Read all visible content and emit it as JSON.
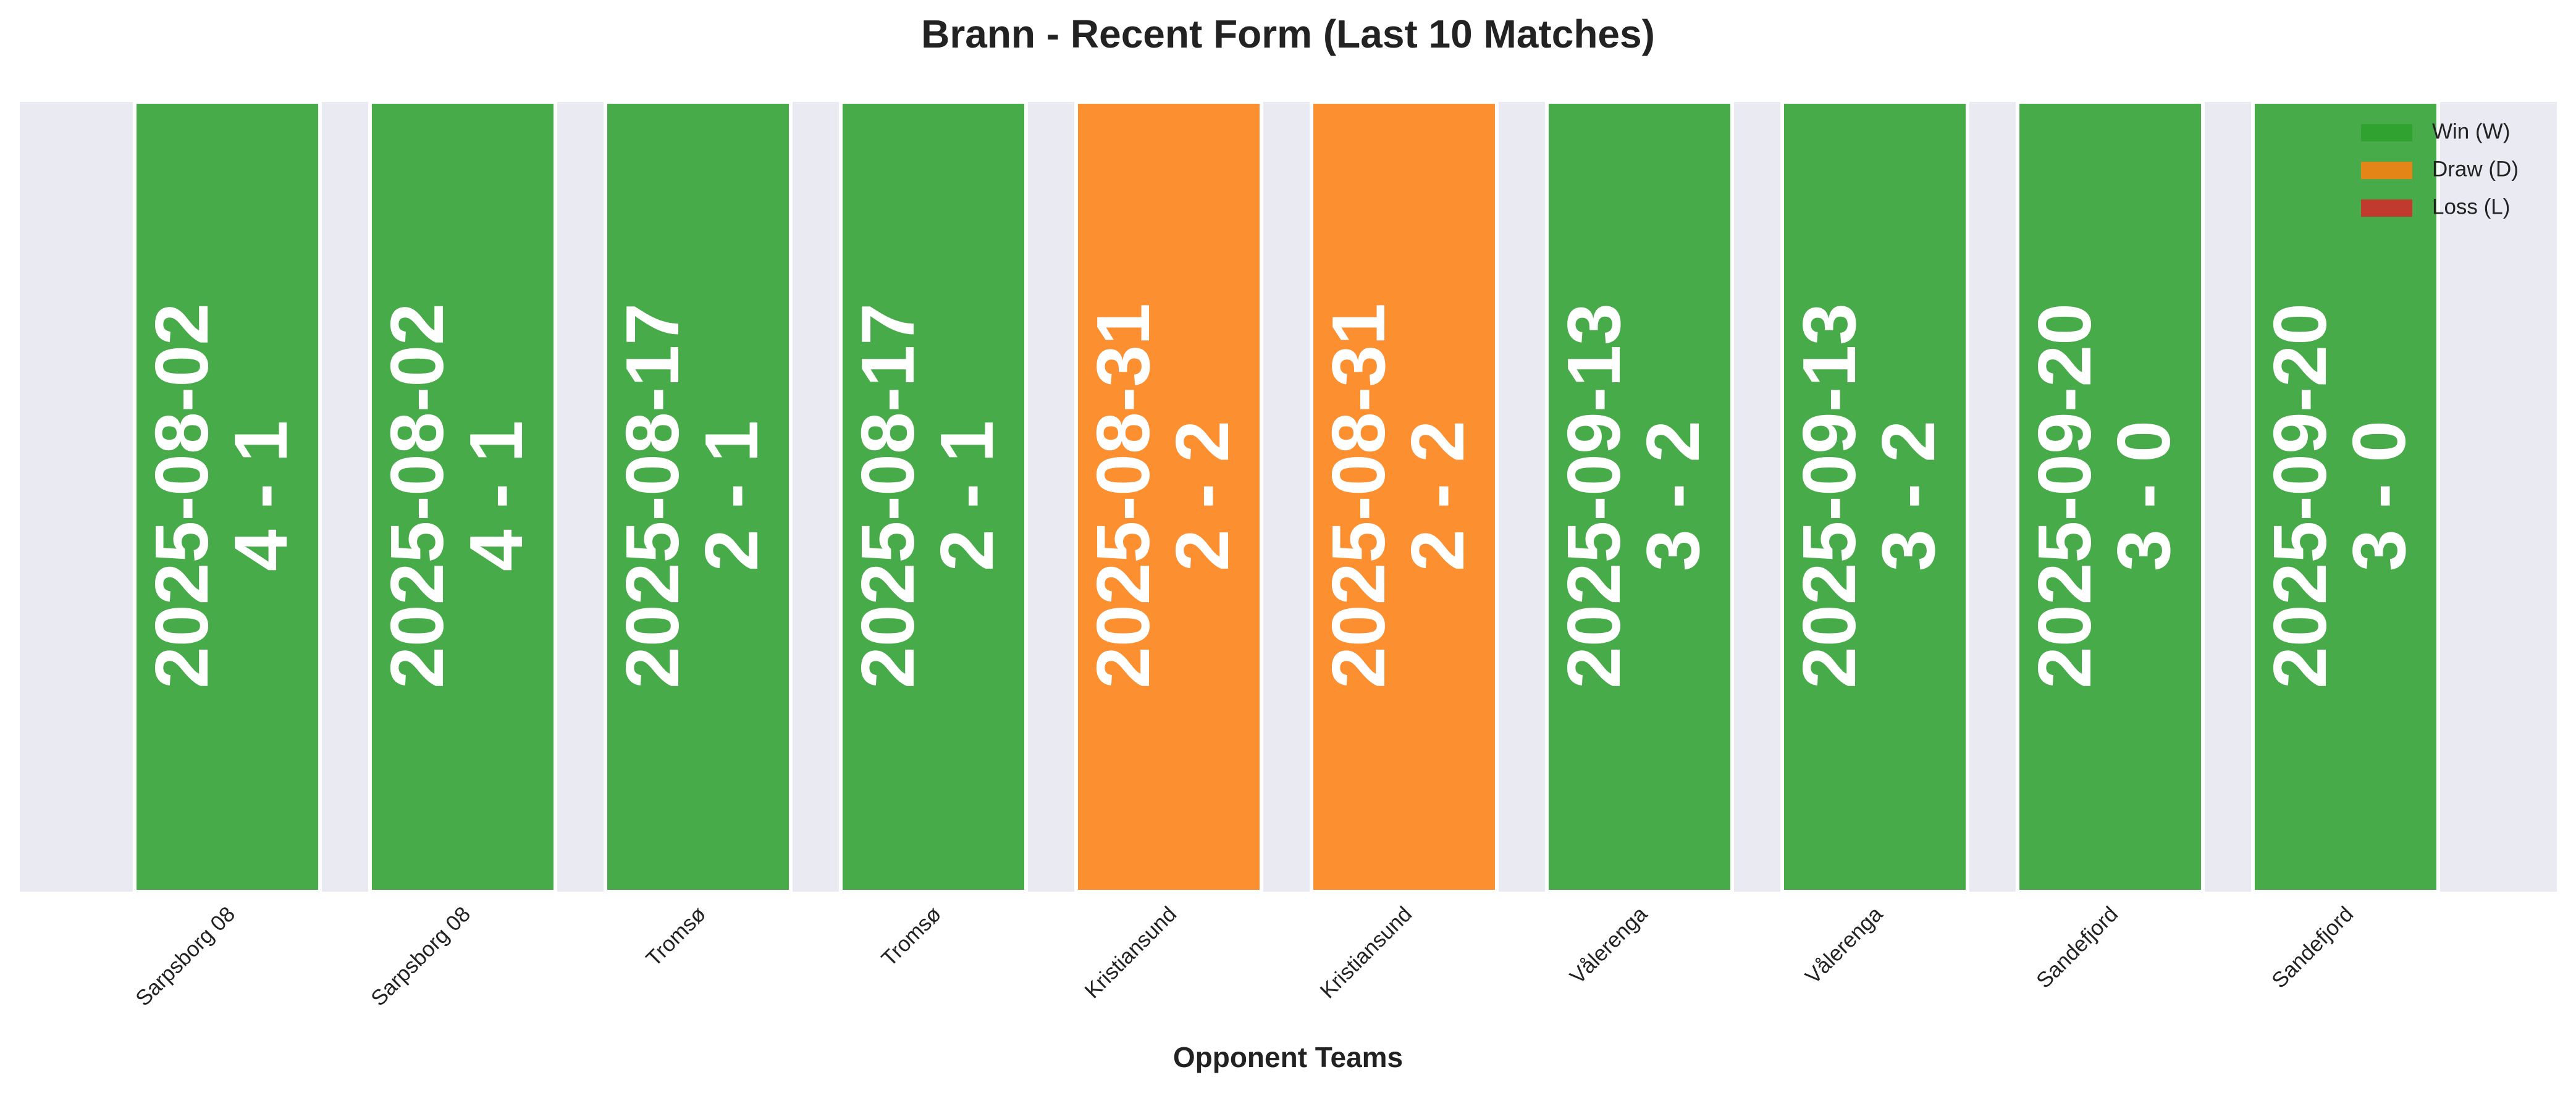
{
  "chart_data": {
    "type": "bar",
    "title": "Brann - Recent Form (Last 10 Matches)",
    "x_label": "Opponent Teams",
    "categories": [
      "Sarpsborg 08",
      "Sarpsborg 08",
      "Tromsø",
      "Tromsø",
      "Kristiansund",
      "Kristiansund",
      "Vålerenga",
      "Vålerenga",
      "Sandefjord",
      "Sandefjord"
    ],
    "values": [
      1,
      1,
      1,
      1,
      1,
      1,
      1,
      1,
      1,
      1
    ],
    "colors": [
      "#2ca02c",
      "#2ca02c",
      "#2ca02c",
      "#2ca02c",
      "#ff7f0e",
      "#ff7f0e",
      "#2ca02c",
      "#2ca02c",
      "#2ca02c",
      "#2ca02c"
    ],
    "bar_labels": [
      [
        "2025-08-02",
        "4 - 1"
      ],
      [
        "2025-08-02",
        "4 - 1"
      ],
      [
        "2025-08-17",
        "2 - 1"
      ],
      [
        "2025-08-17",
        "2 - 1"
      ],
      [
        "2025-08-31",
        "2 - 2"
      ],
      [
        "2025-08-31",
        "2 - 2"
      ],
      [
        "2025-09-13",
        "3 - 2"
      ],
      [
        "2025-09-13",
        "3 - 2"
      ],
      [
        "2025-09-20",
        "3 - 0"
      ],
      [
        "2025-09-20",
        "3 - 0"
      ]
    ],
    "ylim": [
      0,
      1
    ],
    "legend_position": "upper right",
    "legend": [
      {
        "name": "Win (W)",
        "color": "#2ca02c"
      },
      {
        "name": "Draw (D)",
        "color": "#ff7f0e"
      },
      {
        "name": "Loss (L)",
        "color": "#d62728"
      }
    ]
  }
}
